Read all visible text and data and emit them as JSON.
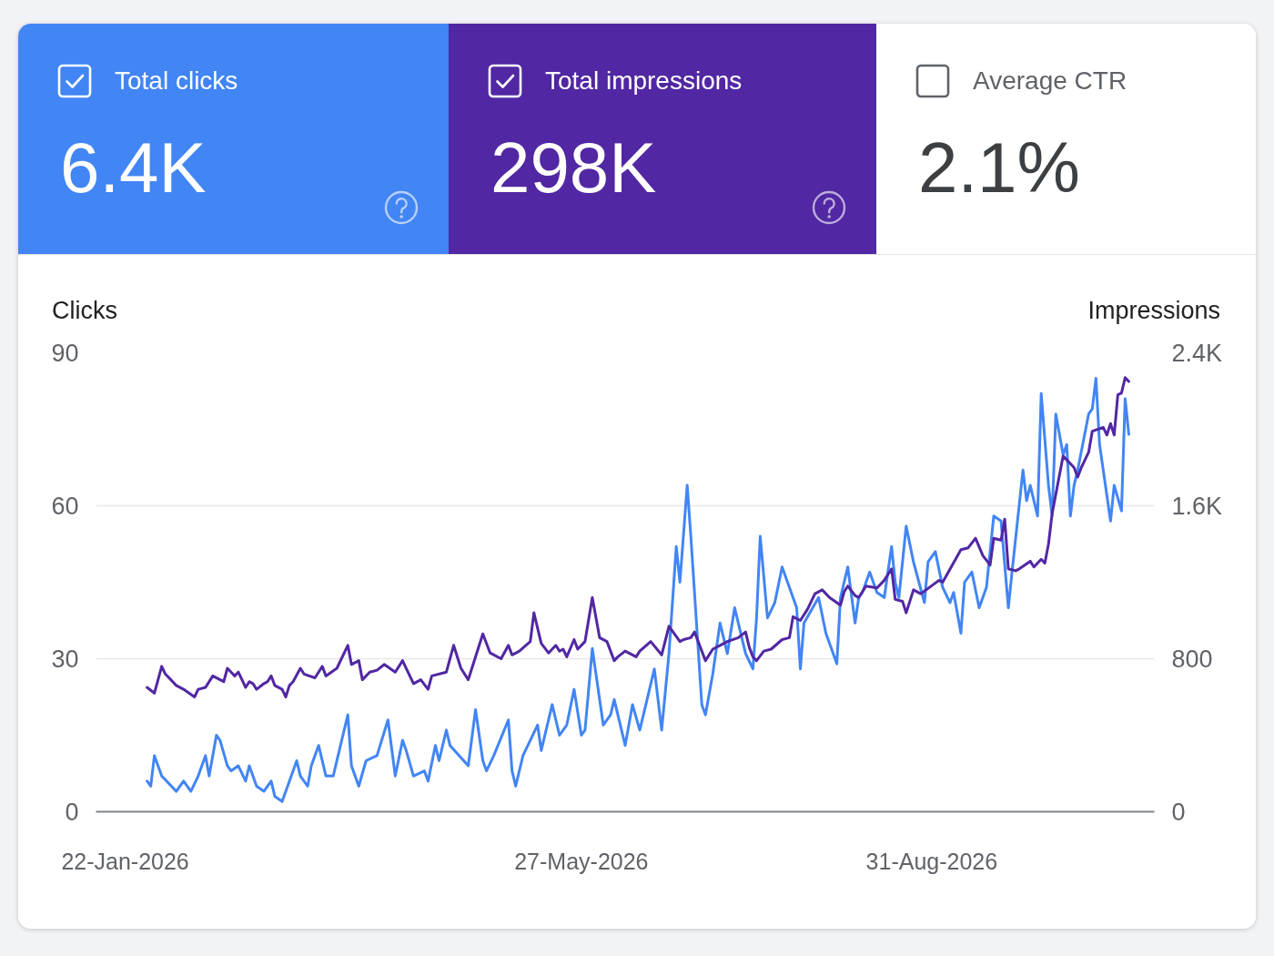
{
  "chart_data": [
    {
      "type": "other",
      "categories": [
        "Total clicks",
        "Total impressions",
        "Average CTR"
      ],
      "annotations": [
        "6.4K",
        "298K",
        "2.1%"
      ],
      "colors": [
        "#4285f4",
        "#5127a3",
        null
      ]
    },
    {
      "type": "line",
      "ylabel": "Clicks",
      "y2label": "Impressions",
      "xlim": [
        "2026-01-14",
        "2026-10-31"
      ],
      "xticks": [
        {
          "value": "2026-01-22",
          "label": "22-Jan-2026"
        },
        {
          "value": "2026-05-27",
          "label": "27-May-2026"
        },
        {
          "value": "2026-08-31",
          "label": "31-Aug-2026"
        }
      ],
      "ylim": [
        0,
        90
      ],
      "yticks": [
        0,
        30,
        60,
        90
      ],
      "y2lim": [
        0,
        2400
      ],
      "y2ticks": [
        0,
        800,
        {
          "value": 1600,
          "label": "1.6K"
        },
        {
          "value": 2400,
          "label": "2.4K"
        }
      ],
      "grid": "y",
      "series": [
        {
          "color": "#4285f4",
          "x": [
            "2026-01-28",
            "2026-01-29",
            "2026-01-30",
            "2026-02-01",
            "2026-02-05",
            "2026-02-07",
            "2026-02-09",
            "2026-02-11",
            "2026-02-13",
            "2026-02-14",
            "2026-02-16",
            "2026-02-17",
            "2026-02-19",
            "2026-02-20",
            "2026-02-22",
            "2026-02-24",
            "2026-02-25",
            "2026-02-27",
            "2026-03-01",
            "2026-03-03",
            "2026-03-04",
            "2026-03-06",
            "2026-03-08",
            "2026-03-10",
            "2026-03-11",
            "2026-03-13",
            "2026-03-14",
            "2026-03-16",
            "2026-03-18",
            "2026-03-20",
            "2026-03-22",
            "2026-03-24",
            "2026-03-25",
            "2026-03-27",
            "2026-03-29",
            "2026-04-01",
            "2026-04-04",
            "2026-04-06",
            "2026-04-08",
            "2026-04-09",
            "2026-04-11",
            "2026-04-14",
            "2026-04-15",
            "2026-04-17",
            "2026-04-18",
            "2026-04-20",
            "2026-04-21",
            "2026-04-26",
            "2026-04-28",
            "2026-04-30",
            "2026-05-01",
            "2026-05-03",
            "2026-05-07",
            "2026-05-08",
            "2026-05-09",
            "2026-05-11",
            "2026-05-15",
            "2026-05-16",
            "2026-05-18",
            "2026-05-19",
            "2026-05-21",
            "2026-05-23",
            "2026-05-25",
            "2026-05-27",
            "2026-05-28",
            "2026-05-30",
            "2026-06-02",
            "2026-06-04",
            "2026-06-05",
            "2026-06-08",
            "2026-06-10",
            "2026-06-12",
            "2026-06-16",
            "2026-06-18",
            "2026-06-20",
            "2026-06-22",
            "2026-06-23",
            "2026-06-25",
            "2026-06-26",
            "2026-06-29",
            "2026-06-30",
            "2026-07-02",
            "2026-07-04",
            "2026-07-06",
            "2026-07-08",
            "2026-07-10",
            "2026-07-11",
            "2026-07-13",
            "2026-07-14",
            "2026-07-15",
            "2026-07-17",
            "2026-07-19",
            "2026-07-21",
            "2026-07-25",
            "2026-07-26",
            "2026-07-27",
            "2026-07-31",
            "2026-08-02",
            "2026-08-05",
            "2026-08-06",
            "2026-08-08",
            "2026-08-10",
            "2026-08-11",
            "2026-08-12",
            "2026-08-14",
            "2026-08-16",
            "2026-08-18",
            "2026-08-20",
            "2026-08-21",
            "2026-08-22",
            "2026-08-24",
            "2026-08-26",
            "2026-08-29",
            "2026-08-30",
            "2026-09-01",
            "2026-09-03",
            "2026-09-05",
            "2026-09-06",
            "2026-09-08",
            "2026-09-09",
            "2026-09-11",
            "2026-09-13",
            "2026-09-15",
            "2026-09-17",
            "2026-09-19",
            "2026-09-21",
            "2026-09-22",
            "2026-09-25",
            "2026-09-26",
            "2026-09-27",
            "2026-09-29",
            "2026-09-30",
            "2026-10-02",
            "2026-10-03",
            "2026-10-04",
            "2026-10-06",
            "2026-10-07",
            "2026-10-08",
            "2026-10-09",
            "2026-10-10",
            "2026-10-13",
            "2026-10-14",
            "2026-10-15",
            "2026-10-16",
            "2026-10-19",
            "2026-10-20",
            "2026-10-22",
            "2026-10-23",
            "2026-10-24"
          ],
          "values": [
            6,
            5,
            11,
            7,
            4,
            6,
            4,
            7,
            11,
            7,
            15,
            14,
            9,
            8,
            9,
            6,
            9,
            5,
            4,
            6,
            3,
            2,
            6,
            10,
            7,
            5,
            9,
            13,
            7,
            7,
            13,
            19,
            9,
            5,
            10,
            11,
            18,
            7,
            14,
            12,
            7,
            8,
            6,
            13,
            10,
            16,
            13,
            9,
            20,
            10,
            8,
            11,
            18,
            8,
            5,
            11,
            17,
            12,
            18,
            21,
            15,
            17,
            24,
            15,
            16,
            32,
            17,
            19,
            22,
            13,
            21,
            16,
            28,
            16,
            31,
            52,
            45,
            64,
            54,
            21,
            19,
            27,
            37,
            31,
            40,
            34,
            31,
            28,
            38,
            54,
            38,
            41,
            48,
            40,
            28,
            37,
            42,
            35,
            29,
            42,
            48,
            37,
            42,
            43,
            47,
            43,
            42,
            52,
            45,
            42,
            56,
            49,
            41,
            49,
            51,
            44,
            41,
            43,
            35,
            45,
            47,
            40,
            44,
            58,
            57,
            40,
            47,
            67,
            61,
            64,
            58,
            82,
            64,
            58,
            78,
            70,
            72,
            58,
            64,
            67,
            78,
            79,
            85,
            72,
            57,
            64,
            59,
            81,
            74
          ]
        },
        {
          "color": "#5127a3",
          "axis": "y2",
          "x": [
            "2026-01-28",
            "2026-01-30",
            "2026-02-01",
            "2026-02-02",
            "2026-02-05",
            "2026-02-07",
            "2026-02-10",
            "2026-02-11",
            "2026-02-13",
            "2026-02-15",
            "2026-02-18",
            "2026-02-19",
            "2026-02-21",
            "2026-02-22",
            "2026-02-24",
            "2026-02-25",
            "2026-02-26",
            "2026-02-27",
            "2026-03-01",
            "2026-03-02",
            "2026-03-03",
            "2026-03-04",
            "2026-03-06",
            "2026-03-07",
            "2026-03-08",
            "2026-03-09",
            "2026-03-11",
            "2026-03-12",
            "2026-03-15",
            "2026-03-17",
            "2026-03-18",
            "2026-03-21",
            "2026-03-24",
            "2026-03-25",
            "2026-03-27",
            "2026-03-28",
            "2026-03-30",
            "2026-04-01",
            "2026-04-03",
            "2026-04-06",
            "2026-04-08",
            "2026-04-11",
            "2026-04-13",
            "2026-04-15",
            "2026-04-16",
            "2026-04-20",
            "2026-04-22",
            "2026-04-24",
            "2026-04-26",
            "2026-04-27",
            "2026-04-30",
            "2026-05-02",
            "2026-05-05",
            "2026-05-07",
            "2026-05-08",
            "2026-05-10",
            "2026-05-13",
            "2026-05-14",
            "2026-05-16",
            "2026-05-18",
            "2026-05-20",
            "2026-05-21",
            "2026-05-22",
            "2026-05-23",
            "2026-05-25",
            "2026-05-26",
            "2026-05-28",
            "2026-05-30",
            "2026-06-01",
            "2026-06-03",
            "2026-06-05",
            "2026-06-06",
            "2026-06-08",
            "2026-06-11",
            "2026-06-12",
            "2026-06-15",
            "2026-06-18",
            "2026-06-20",
            "2026-06-23",
            "2026-06-24",
            "2026-06-26",
            "2026-06-27",
            "2026-06-29",
            "2026-06-30",
            "2026-07-02",
            "2026-07-04",
            "2026-07-06",
            "2026-07-09",
            "2026-07-11",
            "2026-07-12",
            "2026-07-13",
            "2026-07-14",
            "2026-07-16",
            "2026-07-18",
            "2026-07-21",
            "2026-07-23",
            "2026-07-24",
            "2026-07-26",
            "2026-07-28",
            "2026-07-30",
            "2026-08-01",
            "2026-08-03",
            "2026-08-06",
            "2026-08-07",
            "2026-08-08",
            "2026-08-10",
            "2026-08-11",
            "2026-08-13",
            "2026-08-16",
            "2026-08-18",
            "2026-08-20",
            "2026-08-21",
            "2026-08-23",
            "2026-08-24",
            "2026-08-26",
            "2026-08-28",
            "2026-09-02",
            "2026-09-03",
            "2026-09-08",
            "2026-09-10",
            "2026-09-12",
            "2026-09-14",
            "2026-09-16",
            "2026-09-17",
            "2026-09-19",
            "2026-09-20",
            "2026-09-21",
            "2026-09-23",
            "2026-09-24",
            "2026-09-27",
            "2026-09-28",
            "2026-09-30",
            "2026-10-01",
            "2026-10-02",
            "2026-10-03",
            "2026-10-06",
            "2026-10-09",
            "2026-10-10",
            "2026-10-11",
            "2026-10-13",
            "2026-10-14",
            "2026-10-17",
            "2026-10-18",
            "2026-10-19",
            "2026-10-20",
            "2026-10-21",
            "2026-10-22",
            "2026-10-23",
            "2026-10-24"
          ],
          "values": [
            650,
            620,
            760,
            720,
            660,
            640,
            600,
            640,
            650,
            710,
            680,
            750,
            710,
            730,
            650,
            680,
            670,
            640,
            670,
            680,
            710,
            660,
            640,
            600,
            660,
            680,
            750,
            720,
            700,
            760,
            710,
            750,
            870,
            770,
            790,
            690,
            730,
            740,
            770,
            730,
            790,
            670,
            690,
            640,
            710,
            730,
            870,
            750,
            690,
            750,
            930,
            830,
            800,
            870,
            820,
            840,
            890,
            1040,
            880,
            830,
            870,
            840,
            850,
            810,
            900,
            850,
            890,
            1120,
            910,
            890,
            790,
            810,
            840,
            810,
            840,
            890,
            820,
            970,
            890,
            900,
            910,
            940,
            840,
            790,
            850,
            870,
            890,
            910,
            940,
            860,
            810,
            790,
            840,
            850,
            900,
            910,
            1020,
            1000,
            1060,
            1140,
            1160,
            1120,
            1080,
            1150,
            1180,
            1130,
            1120,
            1180,
            1170,
            1210,
            1270,
            1110,
            1100,
            1040,
            1160,
            1140,
            1210,
            1200,
            1370,
            1380,
            1430,
            1340,
            1290,
            1430,
            1420,
            1530,
            1270,
            1260,
            1270,
            1310,
            1280,
            1320,
            1300,
            1400,
            1560,
            1860,
            1800,
            1750,
            1800,
            1880,
            1990,
            2010,
            1970,
            2030,
            1970,
            2180,
            2190,
            2270,
            2250
          ]
        }
      ]
    }
  ]
}
